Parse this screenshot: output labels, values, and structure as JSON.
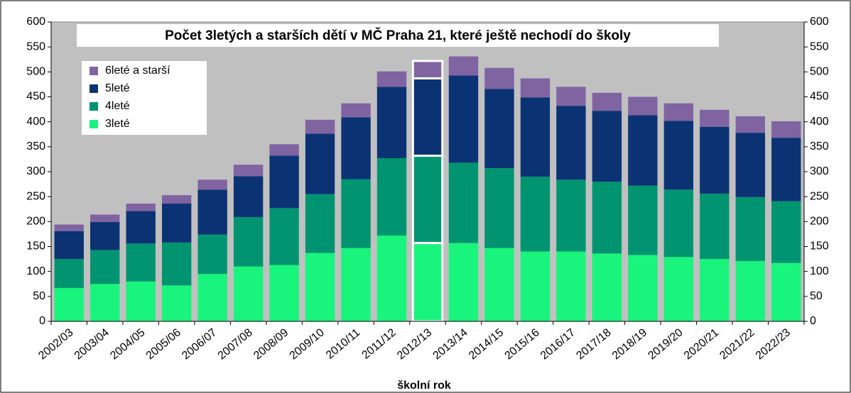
{
  "chart_data": {
    "type": "stacked_bar",
    "title": "Počet 3letých a starších dětí v MČ Praha 21, které ještě nechodí do školy",
    "x_label": "školní rok",
    "categories": [
      "2002/03",
      "2003/04",
      "2004/05",
      "2005/06",
      "2006/07",
      "2007/08",
      "2008/09",
      "2009/10",
      "2010/11",
      "2011/12",
      "2012/13",
      "2013/14",
      "2014/15",
      "2015/16",
      "2016/17",
      "2017/18",
      "2018/19",
      "2019/20",
      "2020/21",
      "2021/22",
      "2022/23"
    ],
    "series": [
      {
        "name": "3leté",
        "color": "#19f47c",
        "values": [
          67,
          75,
          80,
          72,
          95,
          110,
          113,
          137,
          147,
          172,
          157,
          157,
          147,
          140,
          140,
          136,
          133,
          129,
          125,
          121,
          117
        ]
      },
      {
        "name": "4leté",
        "color": "#009470",
        "values": [
          58,
          68,
          76,
          86,
          79,
          99,
          114,
          118,
          138,
          155,
          175,
          161,
          160,
          150,
          144,
          144,
          139,
          135,
          131,
          128,
          124
        ]
      },
      {
        "name": "5leté",
        "color": "#0b3374",
        "values": [
          56,
          56,
          65,
          78,
          90,
          82,
          105,
          121,
          124,
          143,
          155,
          175,
          159,
          159,
          148,
          142,
          141,
          138,
          134,
          129,
          127
        ]
      },
      {
        "name": "6leté a starší",
        "color": "#8064a2",
        "values": [
          13,
          15,
          15,
          17,
          20,
          23,
          23,
          28,
          28,
          31,
          35,
          38,
          42,
          38,
          38,
          36,
          37,
          35,
          34,
          33,
          33
        ]
      }
    ],
    "ylim": [
      0,
      600
    ],
    "yticks": [
      0,
      50,
      100,
      150,
      200,
      250,
      300,
      350,
      400,
      450,
      500,
      550,
      600
    ],
    "highlight_index": 10,
    "legend": "upper left",
    "background": "#c0c0c0"
  }
}
